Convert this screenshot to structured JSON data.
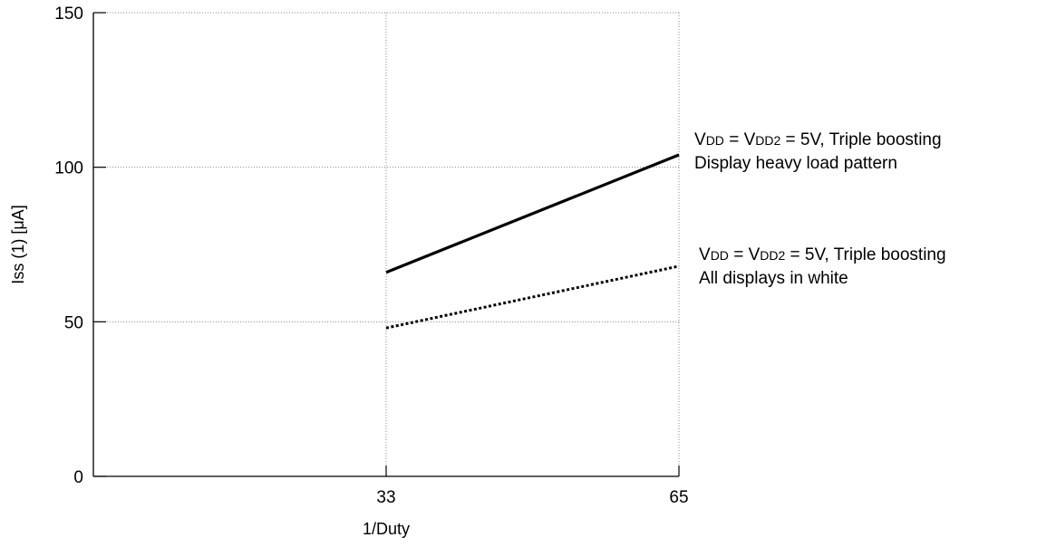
{
  "chart_data": {
    "type": "line",
    "xlabel": "1/Duty",
    "ylabel": "Iss (1)  [μA]",
    "xlim": [
      1,
      65
    ],
    "ylim": [
      0,
      150
    ],
    "xticks": [
      {
        "value": 33,
        "label": "33"
      },
      {
        "value": 65,
        "label": "65"
      }
    ],
    "yticks": [
      {
        "value": 0,
        "label": "0"
      },
      {
        "value": 50,
        "label": "50"
      },
      {
        "value": 100,
        "label": "100"
      },
      {
        "value": 150,
        "label": "150"
      }
    ],
    "grid": true,
    "series": [
      {
        "style": "solid",
        "x": [
          33,
          65
        ],
        "y": [
          66,
          104
        ],
        "annotation": {
          "line1": [
            "V",
            "DD",
            " = V",
            "DD2",
            " = 5V, Triple boosting"
          ],
          "line2": "Display heavy load pattern"
        }
      },
      {
        "style": "dotted",
        "x": [
          33,
          65
        ],
        "y": [
          48,
          68
        ],
        "annotation": {
          "line1": [
            "V",
            "DD",
            " = V",
            "DD2",
            " = 5V, Triple boosting"
          ],
          "line2": "All displays in white"
        }
      }
    ]
  }
}
